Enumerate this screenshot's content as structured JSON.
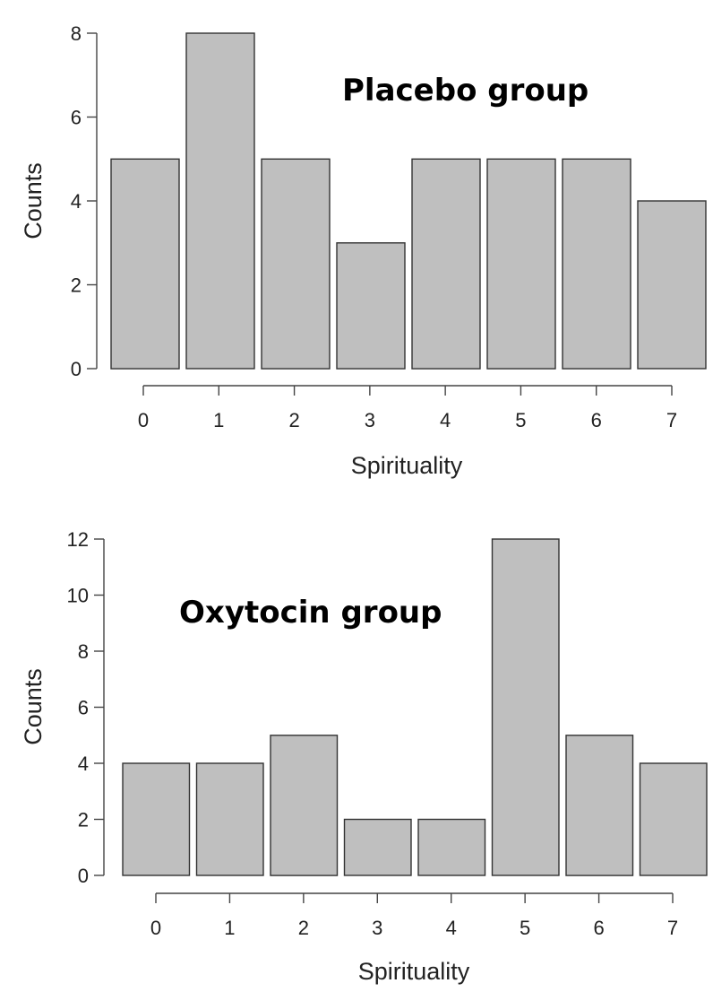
{
  "chart_data": [
    {
      "type": "bar",
      "title": "Placebo group",
      "xlabel": "Spirituality",
      "ylabel": "Counts",
      "categories": [
        "0",
        "1",
        "2",
        "3",
        "4",
        "5",
        "6",
        "7"
      ],
      "values": [
        5,
        8,
        5,
        3,
        5,
        5,
        5,
        4
      ],
      "ylim": [
        0,
        8
      ],
      "yticks": [
        "0",
        "2",
        "4",
        "6",
        "8"
      ],
      "xticks": [
        "0",
        "1",
        "2",
        "3",
        "4",
        "5",
        "6",
        "7"
      ],
      "bar_color": "#bfbfbf",
      "edge_color": "#333333",
      "grid": false
    },
    {
      "type": "bar",
      "title": "Oxytocin group",
      "xlabel": "Spirituality",
      "ylabel": "Counts",
      "categories": [
        "0",
        "1",
        "2",
        "3",
        "4",
        "5",
        "6",
        "7"
      ],
      "values": [
        4,
        4,
        5,
        2,
        2,
        12,
        5,
        4
      ],
      "ylim": [
        0,
        12
      ],
      "yticks": [
        "0",
        "2",
        "4",
        "6",
        "8",
        "10",
        "12"
      ],
      "xticks": [
        "0",
        "1",
        "2",
        "3",
        "4",
        "5",
        "6",
        "7"
      ],
      "bar_color": "#bfbfbf",
      "edge_color": "#333333",
      "grid": false
    }
  ]
}
